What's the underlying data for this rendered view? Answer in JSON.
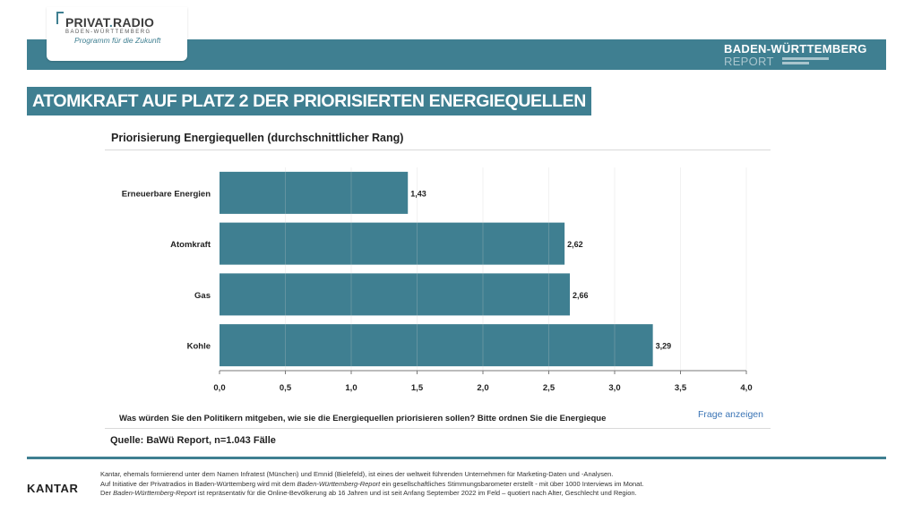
{
  "brand": {
    "logo_name": "PRIVAT",
    "logo_dot": ".",
    "logo_suffix": "RADIO",
    "logo_region": "BADEN-WÜRTTEMBERG",
    "logo_tagline": "Programm für die Zukunft",
    "report_line1": "BADEN-WÜRTTEMBERG",
    "report_line2": "REPORT",
    "accent_color": "#3f7f91"
  },
  "headline": "ATOMKRAFT AUF PLATZ 2 DER PRIORISIERTEN ENERGIEQUELLEN",
  "chart_data": {
    "type": "bar",
    "orientation": "horizontal",
    "title": "Priorisierung Energiequellen (durchschnittlicher Rang)",
    "categories": [
      "Erneuerbare Energien",
      "Atomkraft",
      "Gas",
      "Kohle"
    ],
    "values": [
      1.43,
      2.62,
      2.66,
      3.29
    ],
    "value_labels": [
      "1,43",
      "2,62",
      "2,66",
      "3,29"
    ],
    "xlim": [
      0,
      4
    ],
    "xticks": [
      "0,0",
      "0,5",
      "1,0",
      "1,5",
      "2,0",
      "2,5",
      "3,0",
      "3,5",
      "4,0"
    ],
    "tick_step": 0.5,
    "bar_color": "#3f7f91",
    "gridlines": true,
    "legend": "none"
  },
  "question": "Was würden Sie den Politikern mitgeben, wie sie die Energiequellen priorisieren sollen? Bitte ordnen Sie die Energieque",
  "frage_link": "Frage anzeigen",
  "source": "Quelle: BaWü Report, n=1.043 Fälle",
  "footer": {
    "logo": "KANTAR",
    "line1": "Kantar, ehemals formierend unter dem Namen Infratest (München) und Emnid (Bielefeld), ist eines der weltweit führenden Unternehmen für Marketing-Daten und -Analysen.",
    "line2a": "Auf Initiative der Privatradios in Baden-Württemberg wird mit dem ",
    "line2em": "Baden-Württemberg-Report",
    "line2b": " ein gesellschaftliches Stimmungsbarometer erstellt - mit über 1000 Interviews im Monat.",
    "line3a": "Der ",
    "line3em": "Baden-Württemberg-Report",
    "line3b": " ist repräsentativ für die Online-Bevölkerung ab 16 Jahren und ist seit Anfang September 2022 im Feld – quotiert nach Alter, Geschlecht und Region."
  }
}
